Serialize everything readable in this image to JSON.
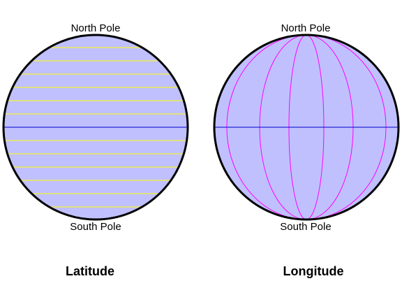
{
  "colors": {
    "globe_fill": "#c0c0ff",
    "outline": "#000000",
    "equator": "#0000cc",
    "latitude_lines": "#ffff00",
    "longitude_lines": "#ff00ff",
    "background": "#ffffff"
  },
  "latitude_diagram": {
    "north_label": "North Pole",
    "south_label": "South Pole",
    "caption": "Latitude"
  },
  "longitude_diagram": {
    "north_label": "North Pole",
    "south_label": "South Pole",
    "caption": "Longitude"
  }
}
